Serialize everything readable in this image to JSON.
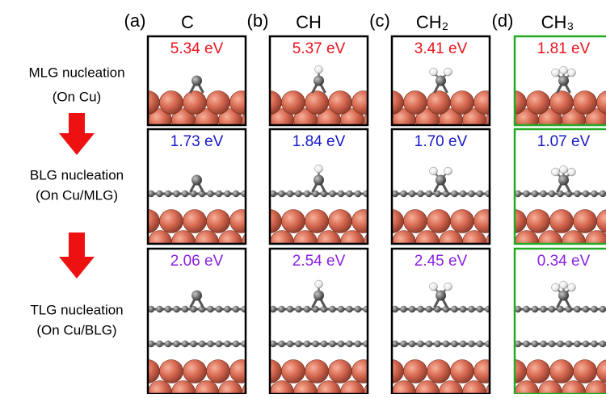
{
  "columns": [
    {
      "letter": "(a)",
      "species": "C",
      "border": "#000000"
    },
    {
      "letter": "(b)",
      "species": "CH",
      "border": "#000000"
    },
    {
      "letter": "(c)",
      "species": "CH₂",
      "border": "#000000"
    },
    {
      "letter": "(d)",
      "species": "CH₃",
      "border": "#22aa22"
    }
  ],
  "rows": [
    {
      "label": [
        "MLG nucleation",
        "(On Cu)"
      ],
      "color": "#e8141c",
      "energies": [
        "5.34 eV",
        "5.37 eV",
        "3.41 eV",
        "1.81 eV"
      ]
    },
    {
      "label": [
        "BLG nucleation",
        "(On Cu/MLG)"
      ],
      "color": "#1818c8",
      "energies": [
        "1.73 eV",
        "1.84 eV",
        "1.70 eV",
        "1.07 eV"
      ]
    },
    {
      "label": [
        "TLG nucleation",
        "(On Cu/BLG)"
      ],
      "color": "#8a22e0",
      "energies": [
        "2.06 eV",
        "2.54 eV",
        "2.45 eV",
        "0.34 eV"
      ]
    }
  ]
}
